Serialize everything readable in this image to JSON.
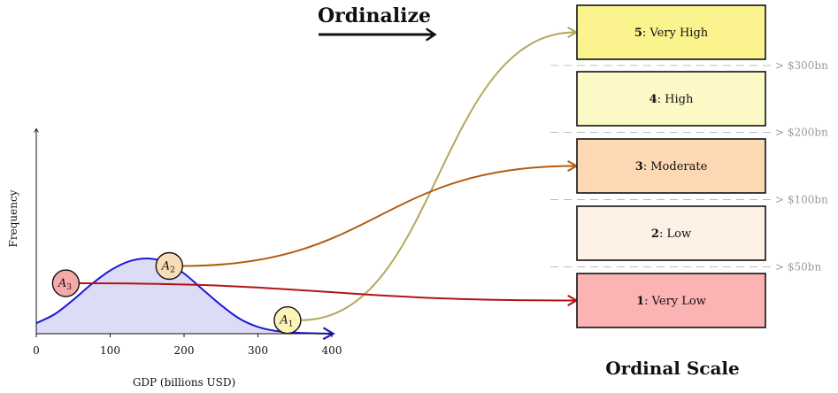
{
  "title": "Ordinalize",
  "scale_title": "Ordinal Scale",
  "colors": {
    "curve": "#1a1ad6",
    "fill": "#dcdcf6",
    "arrow_a1": "#b3a85a",
    "arrow_a2": "#b35c0f",
    "arrow_a3": "#b01515",
    "dashed": "#bdbdbd",
    "threshold_text": "#9a9a9a"
  },
  "chart_data": {
    "type": "area",
    "xlabel": "GDP (billions USD)",
    "ylabel": "Frequency",
    "xlim": [
      0,
      400
    ],
    "x_ticks": [
      0,
      100,
      200,
      300,
      400
    ],
    "grid": false,
    "density_curve": {
      "x": [
        0,
        25,
        50,
        75,
        100,
        125,
        150,
        175,
        200,
        225,
        250,
        275,
        300,
        325,
        350,
        375,
        400
      ],
      "y": [
        0.14,
        0.26,
        0.45,
        0.66,
        0.84,
        0.96,
        1.0,
        0.95,
        0.8,
        0.59,
        0.38,
        0.2,
        0.09,
        0.035,
        0.015,
        0.006,
        0.0
      ]
    },
    "points": [
      {
        "id": "A1",
        "label": "A",
        "sub": "1",
        "x": 340,
        "y": 0.18,
        "fill": "#fbf3b8",
        "target_level": 5
      },
      {
        "id": "A2",
        "label": "A",
        "sub": "2",
        "x": 180,
        "y": 0.9,
        "fill": "#f8ddb8",
        "target_level": 3
      },
      {
        "id": "A3",
        "label": "A",
        "sub": "3",
        "x": 40,
        "y": 0.67,
        "fill": "#f5aaa6",
        "target_level": 1
      }
    ]
  },
  "levels": [
    {
      "num": "5",
      "name": "Very High",
      "fill": "#fbf48e"
    },
    {
      "num": "4",
      "name": "High",
      "fill": "#fcf9c7"
    },
    {
      "num": "3",
      "name": "Moderate",
      "fill": "#fcd9b3"
    },
    {
      "num": "2",
      "name": "Low",
      "fill": "#fdf1e6"
    },
    {
      "num": "1",
      "name": "Very Low",
      "fill": "#fbb3b3"
    }
  ],
  "thresholds": [
    "> $300bn",
    "> $200bn",
    "> $100bn",
    "> $50bn"
  ]
}
